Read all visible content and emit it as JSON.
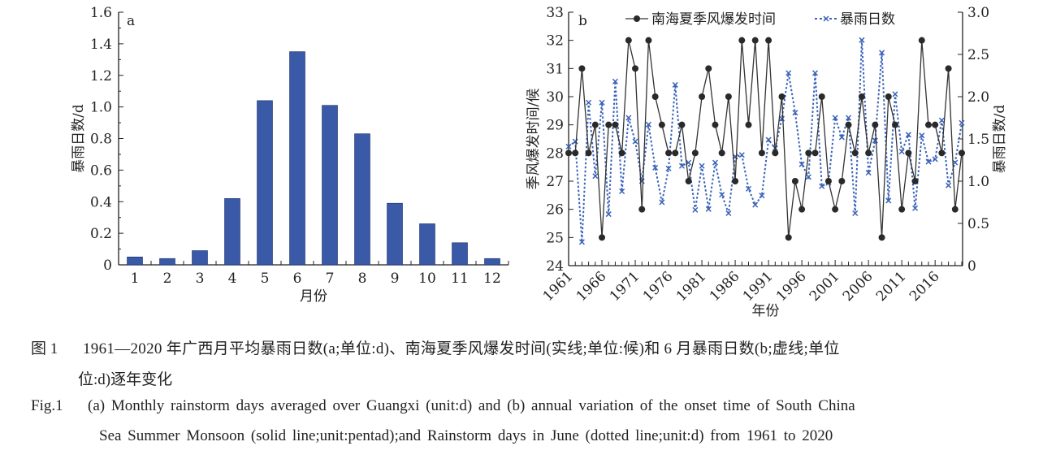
{
  "chart_data": [
    {
      "type": "bar",
      "panel": "a",
      "categories": [
        "1",
        "2",
        "3",
        "4",
        "5",
        "6",
        "7",
        "8",
        "9",
        "10",
        "11",
        "12"
      ],
      "values": [
        0.05,
        0.04,
        0.09,
        0.42,
        1.04,
        1.35,
        1.01,
        0.83,
        0.39,
        0.26,
        0.14,
        0.04
      ],
      "xlabel": "月份",
      "ylabel": "暴雨日数/d",
      "ylim": [
        0,
        1.6
      ],
      "yticks": [
        "0",
        "0.2",
        "0.4",
        "0.6",
        "0.8",
        "1.0",
        "1.2",
        "1.4",
        "1.6"
      ],
      "color": "#3a5aa8",
      "grid": false
    },
    {
      "type": "line",
      "panel": "b",
      "x_start": 1961,
      "x_end": 2020,
      "xticks": [
        "1961",
        "1966",
        "1971",
        "1976",
        "1981",
        "1986",
        "1991",
        "1996",
        "2001",
        "2006",
        "2011",
        "2016"
      ],
      "xlabel": "年份",
      "ylabel_left": "季风爆发时间/候",
      "ylabel_right": "暴雨日数/d",
      "ylim_left": [
        24,
        33
      ],
      "ylim_right": [
        0,
        3.0
      ],
      "yticks_left": [
        "24",
        "25",
        "26",
        "27",
        "28",
        "29",
        "30",
        "31",
        "32",
        "33"
      ],
      "yticks_right": [
        "0",
        "0.5",
        "1.0",
        "1.5",
        "2.0",
        "2.5",
        "3.0"
      ],
      "legend_position": "top",
      "series": [
        {
          "name": "南海夏季风爆发时间",
          "axis": "left",
          "style": "solid",
          "color": "#333333",
          "values": [
            28,
            28,
            31,
            28,
            29,
            25,
            29,
            29,
            28,
            32,
            31,
            26,
            32,
            30,
            29,
            28,
            28,
            29,
            27,
            28,
            30,
            31,
            29,
            28,
            30,
            27,
            32,
            29,
            32,
            28,
            32,
            28,
            30,
            25,
            27,
            26,
            28,
            28,
            30,
            27,
            26,
            27,
            29,
            28,
            30,
            28,
            29,
            25,
            30,
            29,
            26,
            28,
            27,
            32,
            29,
            29,
            28,
            31,
            26,
            28
          ]
        },
        {
          "name": "暴雨日数",
          "axis": "right",
          "style": "dotted",
          "color": "#3a63b8",
          "values": [
            1.41,
            1.47,
            0.28,
            1.93,
            1.06,
            1.93,
            0.61,
            2.18,
            0.88,
            1.75,
            1.47,
            1.0,
            1.67,
            1.16,
            0.75,
            1.15,
            2.14,
            1.18,
            1.22,
            0.66,
            1.18,
            0.67,
            1.22,
            0.84,
            0.62,
            1.29,
            1.31,
            0.91,
            0.72,
            0.83,
            1.49,
            1.39,
            1.74,
            2.28,
            1.81,
            1.2,
            1.05,
            2.28,
            0.94,
            0.98,
            1.75,
            1.52,
            1.75,
            0.62,
            2.67,
            1.1,
            1.48,
            2.52,
            0.77,
            2.03,
            1.35,
            1.55,
            0.68,
            1.54,
            1.23,
            1.26,
            1.72,
            0.95,
            1.22,
            1.69
          ]
        }
      ]
    }
  ],
  "caption": {
    "cn_label": "图 1",
    "cn_line1": "1961—2020 年广西月平均暴雨日数(a;单位:d)、南海夏季风爆发时间(实线;单位:候)和 6 月暴雨日数(b;虚线;单位",
    "cn_line2": "位:d)逐年变化",
    "en_label": "Fig.1",
    "en_line1": "(a) Monthly rainstorm days averaged over Guangxi (unit:d) and (b) annual variation of the onset time of South China",
    "en_line2": "Sea Summer Monsoon (solid line;unit:pentad);and Rainstorm days in June (dotted line;unit:d) from 1961 to 2020"
  }
}
